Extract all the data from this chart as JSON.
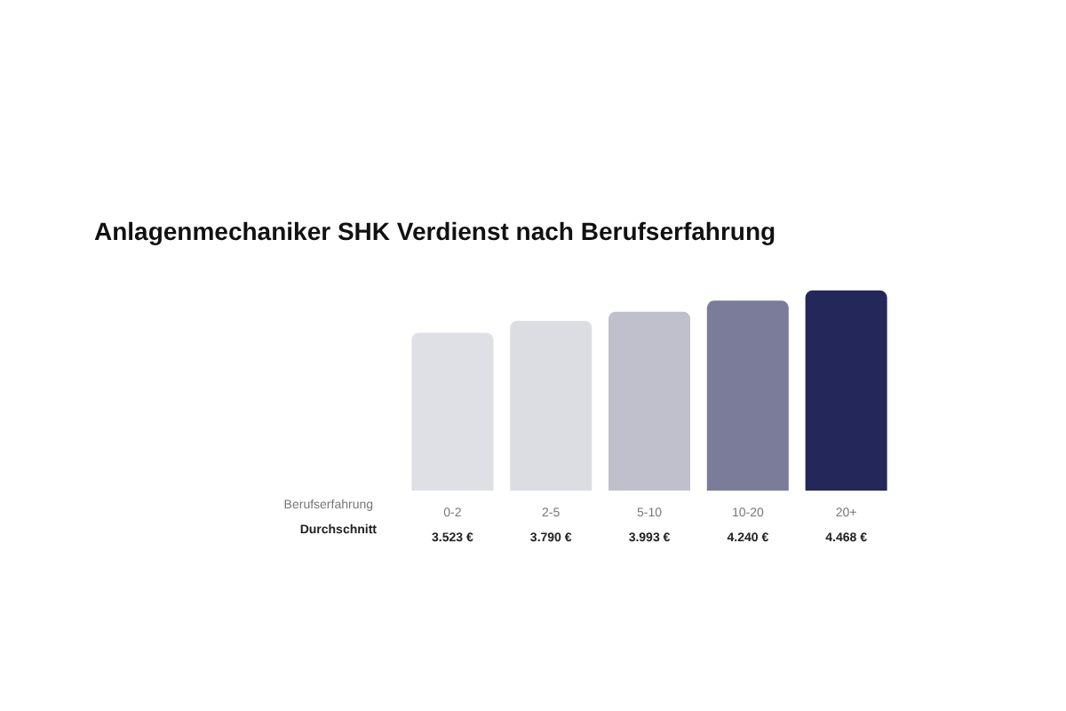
{
  "chart_data": {
    "type": "bar",
    "title": "Anlagenmechaniker SHK Verdienst nach Berufserfahrung",
    "xlabel": "Berufserfahrung",
    "ylabel": "Durchschnitt",
    "categories": [
      "0-2",
      "2-5",
      "5-10",
      "10-20",
      "20+"
    ],
    "values": [
      3523,
      3790,
      3993,
      4240,
      4468
    ],
    "value_labels": [
      "3.523 €",
      "3.790 €",
      "3.993 €",
      "4.240 €",
      "4.468 €"
    ],
    "colors": [
      "#dfdfe6",
      "#dcdce3",
      "#c0c0cc",
      "#7a7c9a",
      "#23275a"
    ],
    "data_labels": false
  }
}
